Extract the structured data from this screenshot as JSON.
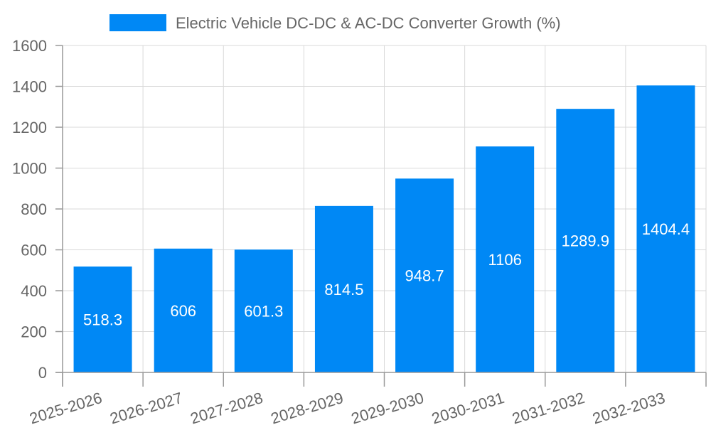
{
  "chart_data": {
    "type": "bar",
    "title": "",
    "xlabel": "",
    "ylabel": "",
    "legend": {
      "position": "top-center",
      "entries": [
        "Electric Vehicle DC-DC & AC-DC Converter Growth (%)"
      ]
    },
    "categories": [
      "2025-2026",
      "2026-2027",
      "2027-2028",
      "2028-2029",
      "2029-2030",
      "2030-2031",
      "2031-2032",
      "2032-2033"
    ],
    "series": [
      {
        "name": "Electric Vehicle DC-DC & AC-DC Converter Growth (%)",
        "values": [
          518.3,
          606,
          601.3,
          814.5,
          948.7,
          1106,
          1289.9,
          1404.4
        ],
        "labels": [
          "518.3",
          "606",
          "601.3",
          "814.5",
          "948.7",
          "1106",
          "1289.9",
          "1404.4"
        ],
        "color": "#0088f5"
      }
    ],
    "ylim": [
      0,
      1600
    ],
    "yticks": [
      0,
      200,
      400,
      600,
      800,
      1000,
      1200,
      1400,
      1600
    ],
    "ytick_labels": [
      "0",
      "200",
      "400",
      "600",
      "800",
      "1000",
      "1200",
      "1400",
      "1600"
    ],
    "grid": true,
    "colors": {
      "bar": "#0088f5",
      "grid": "#d9d9d9",
      "axis": "#999999",
      "text": "#666666",
      "data_label": "#ffffff"
    }
  }
}
